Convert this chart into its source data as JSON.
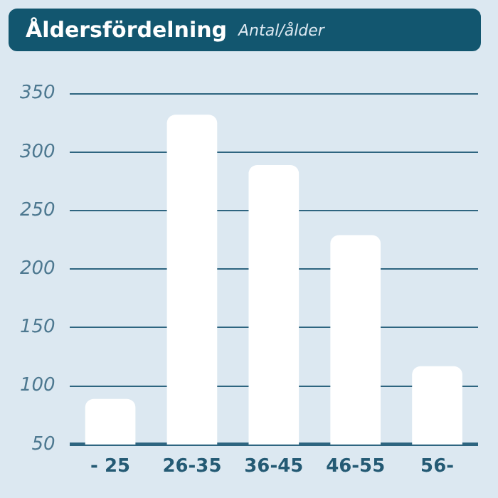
{
  "chart_data": {
    "type": "bar",
    "title": "Åldersfördelning",
    "subtitle": "Antal/ålder",
    "categories": [
      "- 25",
      "26-35",
      "36-45",
      "46-55",
      "56-"
    ],
    "values": [
      89,
      332,
      289,
      229,
      117
    ],
    "color": "#ffffff",
    "ylim": [
      50,
      350
    ],
    "yticks": [
      50,
      100,
      150,
      200,
      250,
      300,
      350
    ],
    "grid": "y",
    "legend": false
  }
}
